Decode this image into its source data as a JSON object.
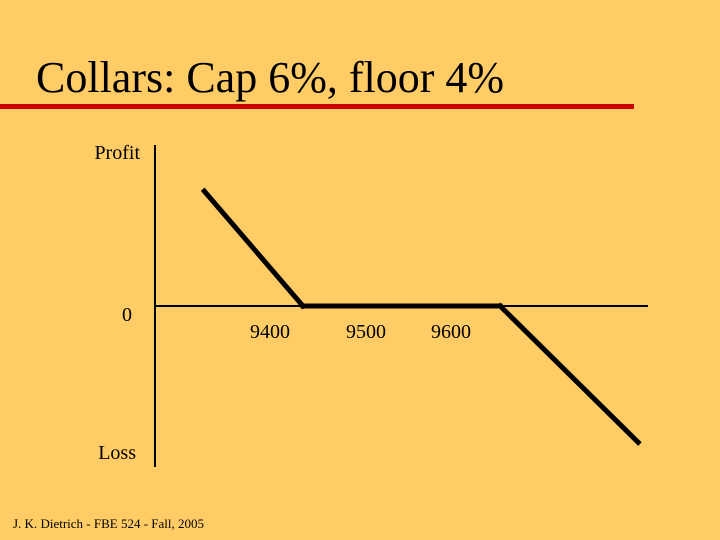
{
  "slide": {
    "title": "Collars: Cap 6%, floor 4%",
    "footer": "J. K. Dietrich - FBE 524 - Fall, 2005",
    "title_rule_color": "#CC0000",
    "background_color": "#FFCC66"
  },
  "chart_data": {
    "type": "line",
    "title": "",
    "xlabel": "",
    "ylabel": "",
    "y_axis_labels": {
      "top": "Profit",
      "zero": "0",
      "bottom": "Loss"
    },
    "x_tick_labels": [
      "9400",
      "9500",
      "9600"
    ],
    "x_ticks": [
      9400,
      9500,
      9600
    ],
    "xlim": [
      9250,
      9750
    ],
    "ylim": [
      -150,
      150
    ],
    "grid": false,
    "series": [
      {
        "x": [
          9300,
          9400,
          9600,
          9740
        ],
        "y": [
          107,
          0,
          0,
          -127
        ]
      }
    ]
  }
}
